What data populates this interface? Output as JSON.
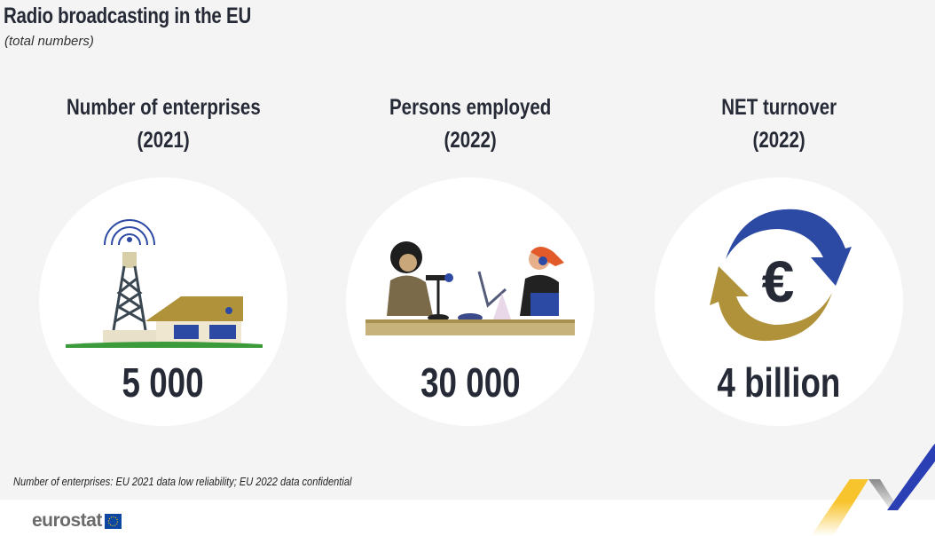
{
  "header": {
    "title": "Radio broadcasting in the EU",
    "subtitle": "(total numbers)"
  },
  "indicators": [
    {
      "label": "Number of enterprises",
      "year": "(2021)",
      "value": "5 000",
      "icon": "radio-tower-house-icon"
    },
    {
      "label": "Persons employed",
      "year": "(2022)",
      "value": "30 000",
      "icon": "radio-hosts-icon"
    },
    {
      "label": "NET turnover",
      "year": "(2022)",
      "value": "4 billion",
      "icon": "euro-cycle-icon"
    }
  ],
  "footnote": "Number of enterprises: EU 2021 data low reliability; EU 2022 data confidential",
  "logo": {
    "text": "eurostat"
  },
  "colors": {
    "text": "#252a36",
    "blue": "#2c49a4",
    "gold": "#b0923b",
    "background": "#f4f4f4"
  }
}
